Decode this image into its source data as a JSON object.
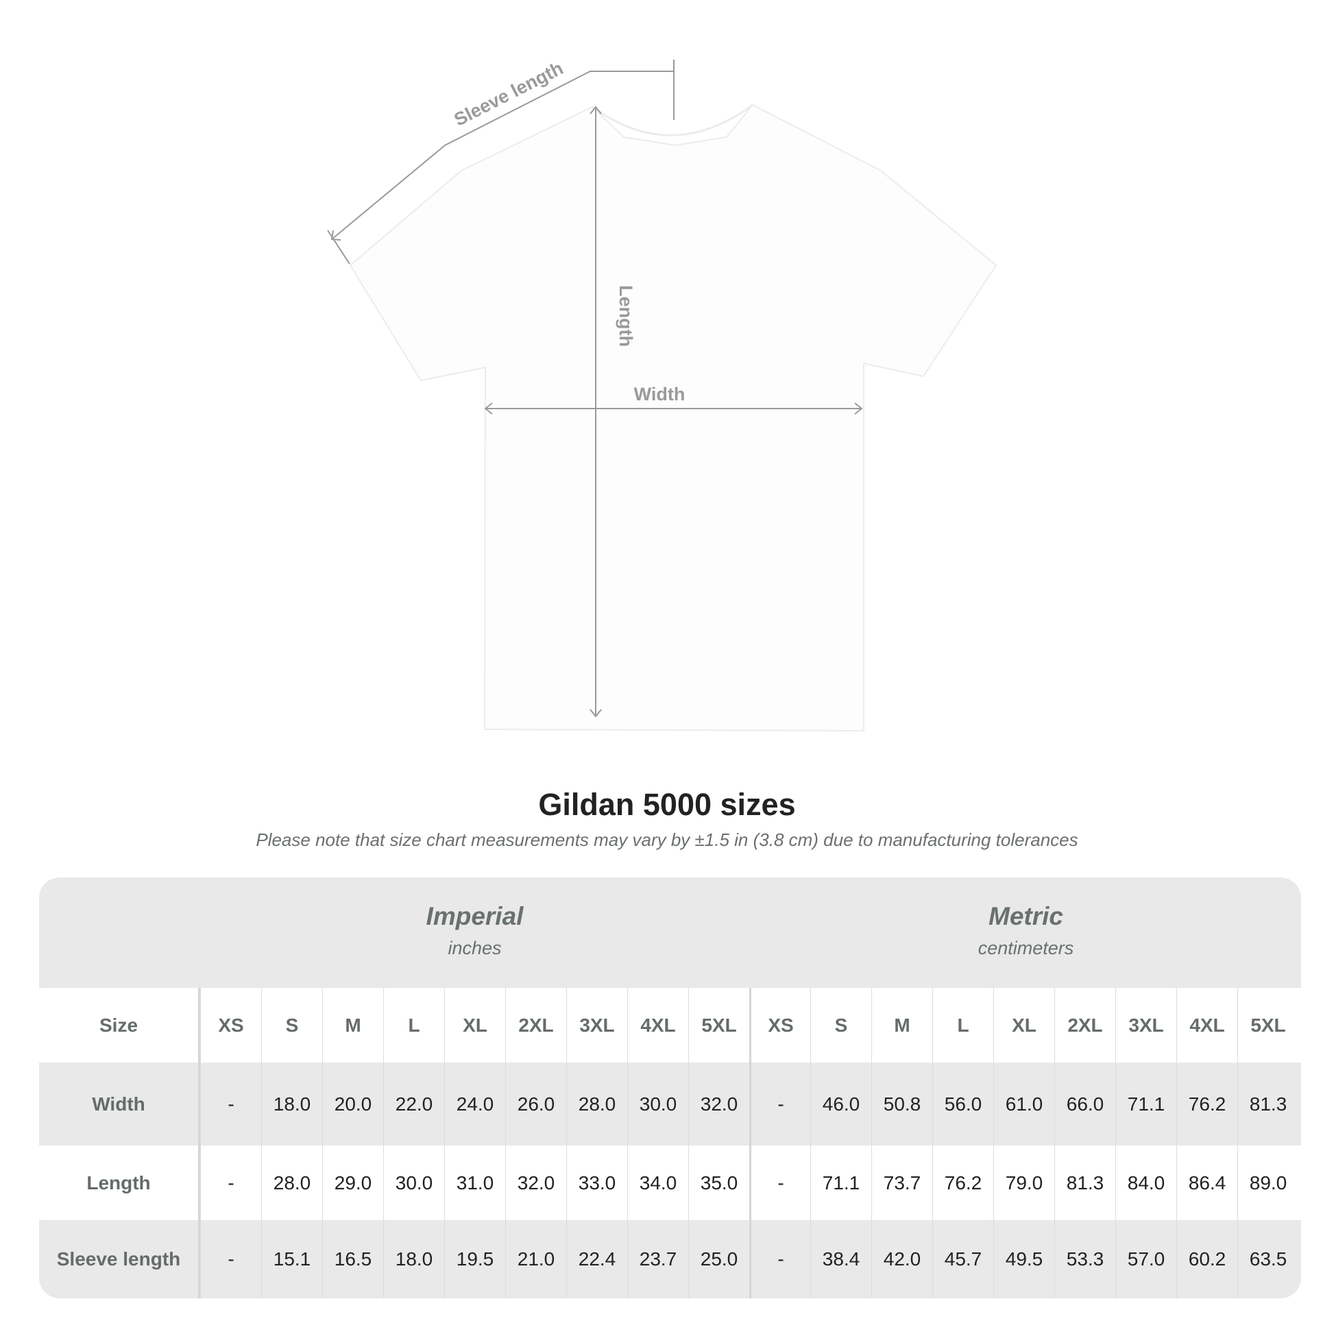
{
  "diagram": {
    "labels": {
      "sleeve": "Sleeve length",
      "length": "Length",
      "width": "Width"
    },
    "shirt_color": "#fdfdfd",
    "line_color": "#9a9a9a"
  },
  "title": "Gildan 5000 sizes",
  "note": "Please note that size chart measurements may vary by ±1.5 in (3.8 cm) due to manufacturing tolerances",
  "table": {
    "imperial": {
      "name": "Imperial",
      "unit": "inches"
    },
    "metric": {
      "name": "Metric",
      "unit": "centimeters"
    },
    "size_label": "Size",
    "sizes": [
      "XS",
      "S",
      "M",
      "L",
      "XL",
      "2XL",
      "3XL",
      "4XL",
      "5XL"
    ],
    "rows": [
      {
        "label": "Width",
        "imperial": [
          "-",
          "18.0",
          "20.0",
          "22.0",
          "24.0",
          "26.0",
          "28.0",
          "30.0",
          "32.0"
        ],
        "metric": [
          "-",
          "46.0",
          "50.8",
          "56.0",
          "61.0",
          "66.0",
          "71.1",
          "76.2",
          "81.3"
        ]
      },
      {
        "label": "Length",
        "imperial": [
          "-",
          "28.0",
          "29.0",
          "30.0",
          "31.0",
          "32.0",
          "33.0",
          "34.0",
          "35.0"
        ],
        "metric": [
          "-",
          "71.1",
          "73.7",
          "76.2",
          "79.0",
          "81.3",
          "84.0",
          "86.4",
          "89.0"
        ]
      },
      {
        "label": "Sleeve length",
        "imperial": [
          "-",
          "15.1",
          "16.5",
          "18.0",
          "19.5",
          "21.0",
          "22.4",
          "23.7",
          "25.0"
        ],
        "metric": [
          "-",
          "38.4",
          "42.0",
          "45.7",
          "49.5",
          "53.3",
          "57.0",
          "60.2",
          "63.5"
        ]
      }
    ],
    "colors": {
      "band": "#e9e9e9",
      "header_text": "#666b6b",
      "value_text": "#222222"
    }
  }
}
